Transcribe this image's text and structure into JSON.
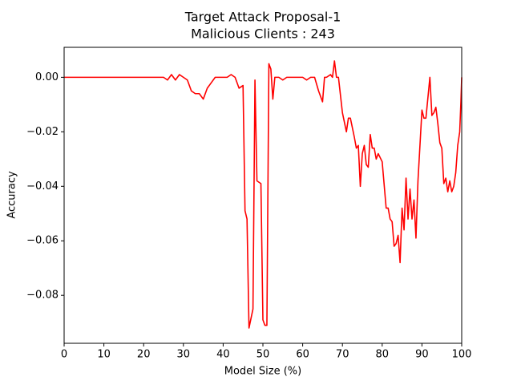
{
  "chart_data": {
    "type": "line",
    "title": "Target Attack Proposal-1",
    "subtitle": "Malicious Clients : 243",
    "x_label": "Model Size (%)",
    "y_label": "Accuracy",
    "xlim": [
      0,
      100
    ],
    "ylim": [
      -0.0976,
      0.011
    ],
    "xticks": [
      0,
      10,
      20,
      30,
      40,
      50,
      60,
      70,
      80,
      90,
      100
    ],
    "yticks": [
      {
        "value": 0,
        "label": "0.00"
      },
      {
        "value": -0.02,
        "label": "−0.02"
      },
      {
        "value": -0.04,
        "label": "−0.04"
      },
      {
        "value": -0.06,
        "label": "−0.06"
      },
      {
        "value": -0.08,
        "label": "−0.08"
      }
    ],
    "series": [
      {
        "name": "Accuracy",
        "color": "#ff0000",
        "x": [
          0,
          25,
          26,
          27,
          28,
          29,
          30,
          31,
          32,
          33,
          34,
          35,
          36,
          37,
          38,
          41,
          42,
          43,
          44,
          45,
          45.5,
          46,
          46.5,
          47.5,
          48,
          48.5,
          49.5,
          50,
          50.5,
          51,
          51.5,
          52,
          52.5,
          53,
          54,
          55,
          56,
          60,
          61,
          62,
          63,
          64,
          65,
          65.5,
          66,
          67,
          67.5,
          68,
          68.5,
          69,
          70,
          71,
          71.5,
          72,
          73,
          73.5,
          74,
          74.5,
          75,
          75.5,
          76,
          76.5,
          77,
          77.5,
          78,
          78.5,
          79,
          80,
          81,
          81.5,
          82,
          82.5,
          83,
          83.5,
          84,
          84.5,
          85,
          85.5,
          86,
          86.5,
          87,
          87.5,
          88,
          88.5,
          89,
          90,
          90.5,
          91,
          92,
          92.5,
          93,
          93.5,
          94,
          94.5,
          95,
          95.5,
          96,
          96.5,
          97,
          97.5,
          98,
          98.5,
          99,
          99.5,
          99.8,
          100
        ],
        "values": [
          0,
          0,
          -0.001,
          0.001,
          -0.001,
          0.001,
          0,
          -0.001,
          -0.005,
          -0.006,
          -0.006,
          -0.008,
          -0.004,
          -0.002,
          0,
          0,
          0.001,
          0,
          -0.004,
          -0.003,
          -0.049,
          -0.052,
          -0.092,
          -0.085,
          -0.001,
          -0.038,
          -0.039,
          -0.089,
          -0.091,
          -0.091,
          0.005,
          0.003,
          -0.008,
          0,
          0,
          -0.001,
          0,
          0,
          -0.001,
          0,
          0,
          -0.005,
          -0.009,
          0,
          0,
          0.001,
          0,
          0.006,
          0,
          0,
          -0.013,
          -0.02,
          -0.015,
          -0.015,
          -0.022,
          -0.026,
          -0.025,
          -0.04,
          -0.028,
          -0.025,
          -0.032,
          -0.033,
          -0.021,
          -0.026,
          -0.026,
          -0.03,
          -0.028,
          -0.031,
          -0.048,
          -0.048,
          -0.052,
          -0.053,
          -0.062,
          -0.061,
          -0.058,
          -0.068,
          -0.048,
          -0.056,
          -0.037,
          -0.052,
          -0.041,
          -0.052,
          -0.045,
          -0.059,
          -0.038,
          -0.012,
          -0.015,
          -0.015,
          0,
          -0.014,
          -0.013,
          -0.011,
          -0.017,
          -0.024,
          -0.026,
          -0.039,
          -0.037,
          -0.042,
          -0.038,
          -0.042,
          -0.04,
          -0.035,
          -0.025,
          -0.02,
          -0.009,
          0
        ]
      }
    ]
  }
}
